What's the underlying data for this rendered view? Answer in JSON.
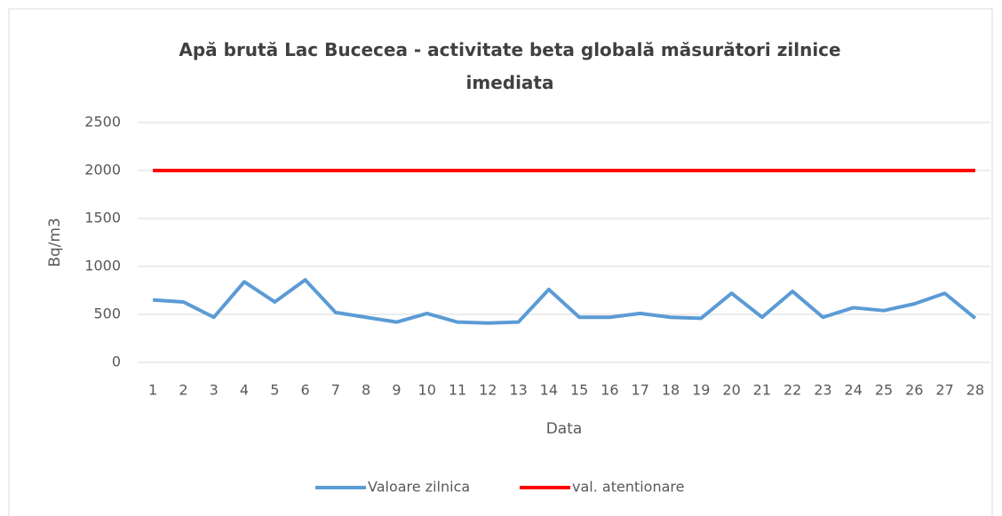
{
  "chart_data": {
    "type": "line",
    "title": "Apă brută Lac Bucecea - activitate beta globală măsurători zilnice imediata",
    "x_label": "Data",
    "y_label": "Bq/m3",
    "categories": [
      "1",
      "2",
      "3",
      "4",
      "5",
      "6",
      "7",
      "8",
      "9",
      "10",
      "11",
      "12",
      "13",
      "14",
      "15",
      "16",
      "17",
      "18",
      "19",
      "20",
      "21",
      "22",
      "23",
      "24",
      "25",
      "26",
      "27",
      "28"
    ],
    "series": [
      {
        "name": "Valoare zilnica",
        "color": "#5b9bd5",
        "values": [
          650,
          630,
          470,
          840,
          630,
          860,
          520,
          470,
          420,
          510,
          420,
          410,
          420,
          760,
          470,
          470,
          510,
          470,
          460,
          720,
          470,
          740,
          470,
          570,
          540,
          610,
          720,
          460
        ]
      },
      {
        "name": "val. atentionare",
        "color": "#ff0000",
        "values": [
          2000,
          2000,
          2000,
          2000,
          2000,
          2000,
          2000,
          2000,
          2000,
          2000,
          2000,
          2000,
          2000,
          2000,
          2000,
          2000,
          2000,
          2000,
          2000,
          2000,
          2000,
          2000,
          2000,
          2000,
          2000,
          2000,
          2000,
          2000
        ]
      }
    ],
    "ylim": [
      0,
      2500
    ],
    "yticks": [
      0,
      500,
      1000,
      1500,
      2000,
      2500
    ],
    "grid": true,
    "legend": "bottom"
  }
}
